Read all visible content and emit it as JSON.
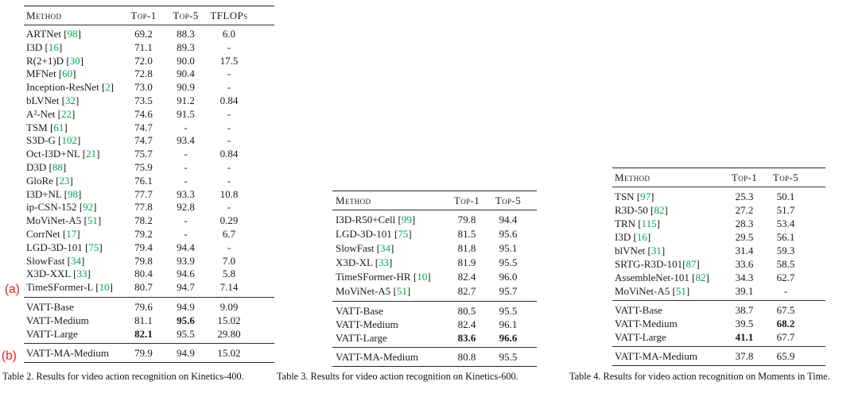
{
  "colors": {
    "citation_green": "#00a551",
    "annotation_red": "#ee2019",
    "text": "#1a1a1a"
  },
  "annotations": [
    {
      "label": "(a)"
    },
    {
      "label": "(b)"
    }
  ],
  "tables": [
    {
      "caption": "Table 2. Results for video action recognition on Kinetics-400.",
      "columns": [
        "Method",
        "Top-1",
        "Top-5",
        "TFLOPs"
      ],
      "rows": [
        {
          "method": "ARTNet ",
          "cite": "98",
          "values": [
            "69.2",
            "88.3",
            "6.0"
          ]
        },
        {
          "method": "I3D ",
          "cite": "16",
          "values": [
            "71.1",
            "89.3",
            "-"
          ]
        },
        {
          "method": "R(2+1)D ",
          "cite": "30",
          "values": [
            "72.0",
            "90.0",
            "17.5"
          ]
        },
        {
          "method": "MFNet ",
          "cite": "60",
          "values": [
            "72.8",
            "90.4",
            "-"
          ]
        },
        {
          "method": "Inception-ResNet ",
          "cite": "2",
          "values": [
            "73.0",
            "90.9",
            "-"
          ]
        },
        {
          "method": "bLVNet ",
          "cite": "32",
          "values": [
            "73.5",
            "91.2",
            "0.84"
          ]
        },
        {
          "method": "A²-Net ",
          "cite": "22",
          "values": [
            "74.6",
            "91.5",
            "-"
          ]
        },
        {
          "method": "TSM ",
          "cite": "61",
          "values": [
            "74.7",
            "-",
            "-"
          ]
        },
        {
          "method": "S3D-G ",
          "cite": "102",
          "values": [
            "74.7",
            "93.4",
            "-"
          ]
        },
        {
          "method": "Oct-I3D+NL ",
          "cite": "21",
          "values": [
            "75.7",
            "-",
            "0.84"
          ]
        },
        {
          "method": "D3D ",
          "cite": "88",
          "values": [
            "75.9",
            "-",
            "-"
          ]
        },
        {
          "method": "GloRe ",
          "cite": "23",
          "values": [
            "76.1",
            "-",
            "-"
          ]
        },
        {
          "method": "I3D+NL ",
          "cite": "98",
          "values": [
            "77.7",
            "93.3",
            "10.8"
          ]
        },
        {
          "method": "ip-CSN-152 ",
          "cite": "92",
          "values": [
            "77.8",
            "92.8",
            "-"
          ]
        },
        {
          "method": "MoViNet-A5 ",
          "cite": "51",
          "values": [
            "78.2",
            "-",
            "0.29"
          ]
        },
        {
          "method": "CorrNet ",
          "cite": "17",
          "values": [
            "79.2",
            "-",
            "6.7"
          ]
        },
        {
          "method": "LGD-3D-101 ",
          "cite": "75",
          "values": [
            "79.4",
            "94.4",
            "-"
          ]
        },
        {
          "method": "SlowFast ",
          "cite": "34",
          "values": [
            "79.8",
            "93.9",
            "7.0"
          ]
        },
        {
          "method": "X3D-XXL ",
          "cite": "33",
          "values": [
            "80.4",
            "94.6",
            "5.8"
          ]
        },
        {
          "method": "TimeSFormer-L ",
          "cite": "10",
          "values": [
            "80.7",
            "94.7",
            "7.14"
          ]
        }
      ],
      "vatt_rows": [
        {
          "method": "VATT-Base",
          "values": [
            "79.6",
            "94.9",
            "9.09"
          ]
        },
        {
          "method": "VATT-Medium",
          "values": [
            "81.1",
            "95.6",
            "15.02"
          ],
          "bold": [
            1
          ]
        },
        {
          "method": "VATT-Large",
          "values": [
            "82.1",
            "95.5",
            "29.80"
          ],
          "bold": [
            0
          ]
        }
      ],
      "ma_rows": [
        {
          "method": "VATT-MA-Medium",
          "values": [
            "79.9",
            "94.9",
            "15.02"
          ]
        }
      ]
    },
    {
      "caption": "Table 3. Results for video action recognition on Kinetics-600.",
      "columns": [
        "Method",
        "Top-1",
        "Top-5"
      ],
      "rows": [
        {
          "method": "I3D-R50+Cell ",
          "cite": "99",
          "values": [
            "79.8",
            "94.4"
          ]
        },
        {
          "method": "LGD-3D-101 ",
          "cite": "75",
          "values": [
            "81.5",
            "95.6"
          ]
        },
        {
          "method": "SlowFast ",
          "cite": "34",
          "values": [
            "81.8",
            "95.1"
          ]
        },
        {
          "method": "X3D-XL ",
          "cite": "33",
          "values": [
            "81.9",
            "95.5"
          ]
        },
        {
          "method": "TimeSFormer-HR ",
          "cite": "10",
          "values": [
            "82.4",
            "96.0"
          ]
        },
        {
          "method": "MoViNet-A5 ",
          "cite": "51",
          "values": [
            "82.7",
            "95.7"
          ]
        }
      ],
      "vatt_rows": [
        {
          "method": "VATT-Base",
          "values": [
            "80.5",
            "95.5"
          ]
        },
        {
          "method": "VATT-Medium",
          "values": [
            "82.4",
            "96.1"
          ]
        },
        {
          "method": "VATT-Large",
          "values": [
            "83.6",
            "96.6"
          ],
          "bold": [
            0,
            1
          ]
        }
      ],
      "ma_rows": [
        {
          "method": "VATT-MA-Medium",
          "values": [
            "80.8",
            "95.5"
          ]
        }
      ]
    },
    {
      "caption": "Table 4. Results for video action recognition on Moments in Time.",
      "columns": [
        "Method",
        "Top-1",
        "Top-5"
      ],
      "rows": [
        {
          "method": "TSN ",
          "cite": "97",
          "values": [
            "25.3",
            "50.1"
          ]
        },
        {
          "method": "R3D-50 ",
          "cite": "82",
          "values": [
            "27.2",
            "51.7"
          ]
        },
        {
          "method": "TRN ",
          "cite": "115",
          "values": [
            "28.3",
            "53.4"
          ]
        },
        {
          "method": "I3D ",
          "cite": "16",
          "values": [
            "29.5",
            "56.1"
          ]
        },
        {
          "method": "blVNet ",
          "cite": "31",
          "values": [
            "31.4",
            "59.3"
          ]
        },
        {
          "method": "SRTG-R3D-101",
          "cite": "87",
          "values": [
            "33.6",
            "58.5"
          ]
        },
        {
          "method": "AssembleNet-101 ",
          "cite": "82",
          "values": [
            "34.3",
            "62.7"
          ]
        },
        {
          "method": "MoViNet-A5 ",
          "cite": "51",
          "values": [
            "39.1",
            "-"
          ]
        }
      ],
      "vatt_rows": [
        {
          "method": "VATT-Base",
          "values": [
            "38.7",
            "67.5"
          ]
        },
        {
          "method": "VATT-Medium",
          "values": [
            "39.5",
            "68.2"
          ],
          "bold": [
            1
          ]
        },
        {
          "method": "VATT-Large",
          "values": [
            "41.1",
            "67.7"
          ],
          "bold": [
            0
          ]
        }
      ],
      "ma_rows": [
        {
          "method": "VATT-MA-Medium",
          "values": [
            "37.8",
            "65.9"
          ]
        }
      ]
    }
  ]
}
